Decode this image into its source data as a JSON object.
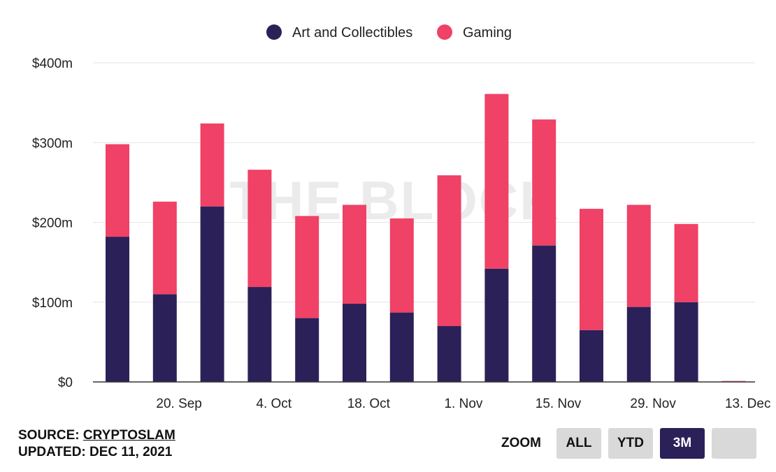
{
  "watermark": "THE BLOCK",
  "legend": [
    {
      "label": "Art and Collectibles",
      "color": "#2b2158"
    },
    {
      "label": "Gaming",
      "color": "#f04166"
    }
  ],
  "footer": {
    "source_prefix": "SOURCE: ",
    "source_name": "CRYPTOSLAM",
    "updated": "UPDATED: DEC 11, 2021"
  },
  "zoom": {
    "label": "ZOOM",
    "buttons": [
      {
        "label": "ALL",
        "active": false
      },
      {
        "label": "YTD",
        "active": false
      },
      {
        "label": "3M",
        "active": true
      },
      {
        "label": "",
        "active": false
      }
    ]
  },
  "chart_data": {
    "type": "bar",
    "stacked": true,
    "y_unit": "USD millions",
    "ylim": [
      0,
      400
    ],
    "y_ticks": [
      0,
      100,
      200,
      300,
      400
    ],
    "y_tick_labels": [
      "$0",
      "$100m",
      "$200m",
      "$300m",
      "$400m"
    ],
    "x_tick_labels": [
      {
        "label": "20. Sep",
        "position": 1.3
      },
      {
        "label": "4. Oct",
        "position": 3.3
      },
      {
        "label": "18. Oct",
        "position": 5.3
      },
      {
        "label": "1. Nov",
        "position": 7.3
      },
      {
        "label": "15. Nov",
        "position": 9.3
      },
      {
        "label": "29. Nov",
        "position": 11.3
      },
      {
        "label": "13. Dec",
        "position": 13.3
      }
    ],
    "grid": true,
    "legend_position": "top-center",
    "series": [
      {
        "name": "Art and Collectibles",
        "color": "#2b2158",
        "values": [
          182,
          110,
          220,
          119,
          80,
          98,
          87,
          70,
          142,
          171,
          65,
          94,
          100,
          0.5
        ]
      },
      {
        "name": "Gaming",
        "color": "#f04166",
        "values": [
          116,
          116,
          104,
          147,
          128,
          124,
          118,
          189,
          219,
          158,
          152,
          128,
          98,
          0.7
        ]
      }
    ]
  }
}
